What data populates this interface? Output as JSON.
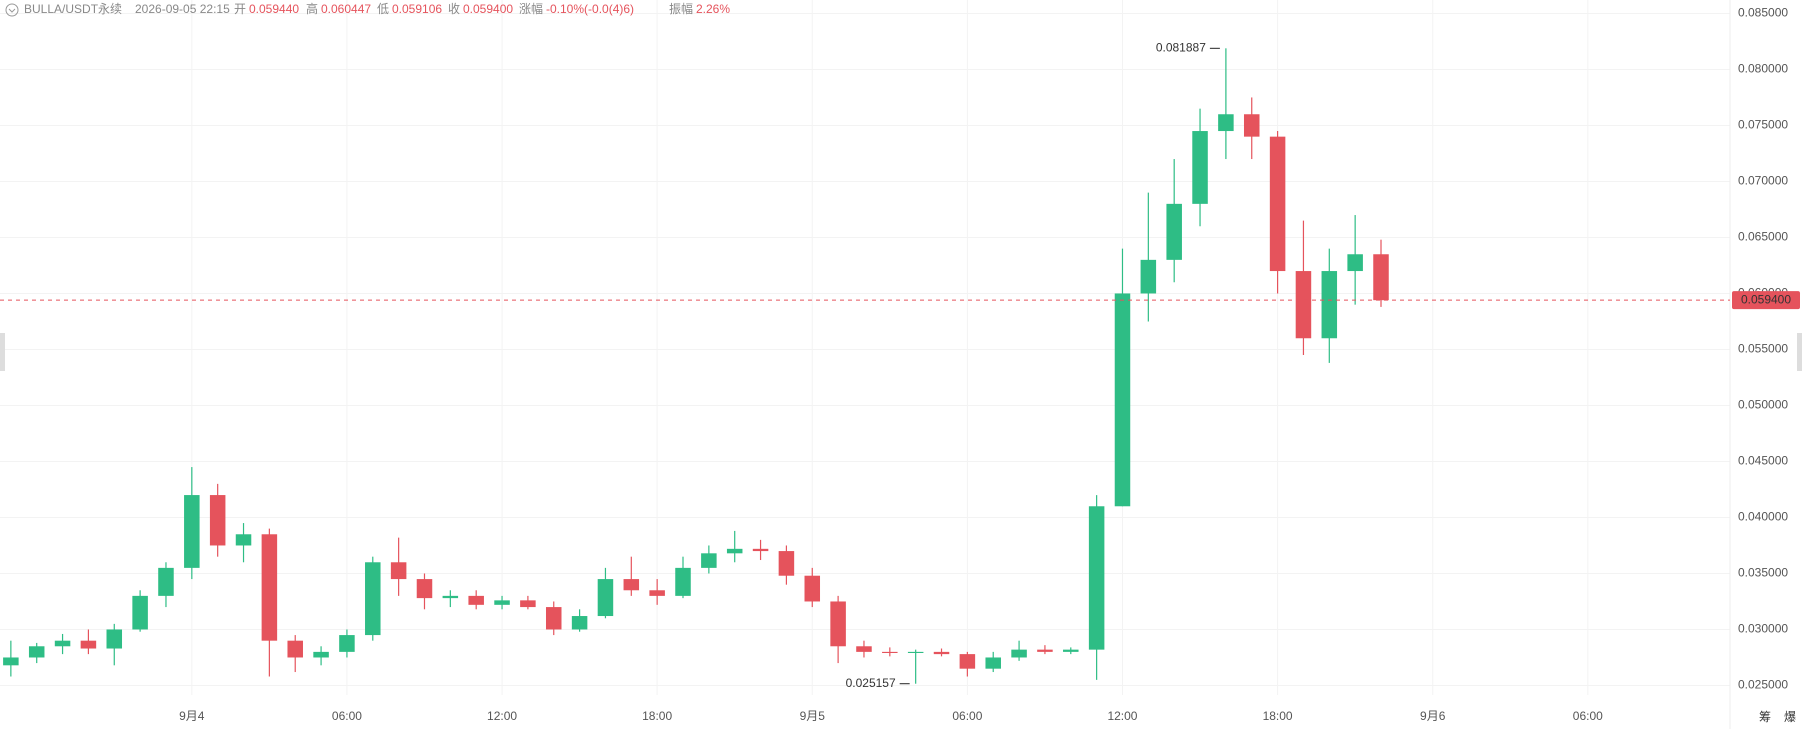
{
  "header": {
    "symbol": "BULLA/USDT永续",
    "time": "2026-09-05 22:15",
    "open_label": "开",
    "open": "0.059440",
    "high_label": "高",
    "high": "0.060447",
    "low_label": "低",
    "low": "0.059106",
    "close_label": "收",
    "close": "0.059400",
    "change_label": "涨幅",
    "change": "-0.10%(-0.0(4)6)",
    "amplitude_label": "振幅",
    "amplitude": "2.26%"
  },
  "footer": {
    "chips": "筹",
    "liquidation": "爆"
  },
  "chart_data": {
    "type": "candlestick",
    "up_color": "#2ebd85",
    "down_color": "#e5535c",
    "grid": true,
    "x": [
      -7,
      -6,
      -5,
      -4,
      -3,
      -2,
      -1,
      0,
      1,
      2,
      3,
      4,
      5,
      6,
      7,
      8,
      9,
      10,
      11,
      12,
      13,
      14,
      15,
      16,
      17,
      18,
      19,
      20,
      21,
      22,
      23,
      24,
      25,
      26,
      27,
      28,
      29,
      30,
      31,
      32,
      33,
      34,
      35,
      36,
      37,
      38,
      39,
      40,
      41,
      42,
      43,
      44,
      45,
      46
    ],
    "open": [
      0.0268,
      0.0275,
      0.0285,
      0.029,
      0.0283,
      0.03,
      0.033,
      0.0355,
      0.042,
      0.0375,
      0.0385,
      0.029,
      0.0275,
      0.028,
      0.0295,
      0.036,
      0.0345,
      0.0328,
      0.033,
      0.0322,
      0.0326,
      0.032,
      0.03,
      0.0312,
      0.0345,
      0.0335,
      0.033,
      0.0355,
      0.0368,
      0.0372,
      0.037,
      0.0348,
      0.0325,
      0.0285,
      0.028,
      0.0279,
      0.028,
      0.0278,
      0.0265,
      0.0275,
      0.0282,
      0.028,
      0.0282,
      0.041,
      0.06,
      0.063,
      0.068,
      0.0745,
      0.076,
      0.074,
      0.062,
      0.056,
      0.062,
      0.0635
    ],
    "high": [
      0.029,
      0.0288,
      0.0296,
      0.03,
      0.0305,
      0.0335,
      0.036,
      0.0445,
      0.043,
      0.0395,
      0.039,
      0.0295,
      0.0285,
      0.03,
      0.0365,
      0.0382,
      0.035,
      0.0335,
      0.0335,
      0.033,
      0.033,
      0.0325,
      0.0318,
      0.0355,
      0.0365,
      0.0345,
      0.0365,
      0.0375,
      0.0388,
      0.038,
      0.0375,
      0.0355,
      0.033,
      0.029,
      0.0284,
      0.0282,
      0.0283,
      0.028,
      0.028,
      0.029,
      0.0286,
      0.0284,
      0.042,
      0.064,
      0.069,
      0.072,
      0.0765,
      0.081887,
      0.0775,
      0.0745,
      0.0665,
      0.064,
      0.067,
      0.0648
    ],
    "low": [
      0.0258,
      0.027,
      0.0278,
      0.0278,
      0.0268,
      0.0298,
      0.032,
      0.0345,
      0.0365,
      0.036,
      0.0258,
      0.0262,
      0.0268,
      0.0275,
      0.029,
      0.033,
      0.0318,
      0.032,
      0.0318,
      0.0318,
      0.0318,
      0.0295,
      0.0298,
      0.031,
      0.033,
      0.0322,
      0.0328,
      0.035,
      0.036,
      0.0362,
      0.034,
      0.032,
      0.027,
      0.0275,
      0.0276,
      0.025157,
      0.0276,
      0.0258,
      0.0262,
      0.0272,
      0.0278,
      0.0278,
      0.0255,
      0.041,
      0.0575,
      0.061,
      0.066,
      0.072,
      0.072,
      0.06,
      0.0545,
      0.0538,
      0.059,
      0.0588
    ],
    "close": [
      0.0275,
      0.0285,
      0.029,
      0.0283,
      0.03,
      0.033,
      0.0355,
      0.042,
      0.0375,
      0.0385,
      0.029,
      0.0275,
      0.028,
      0.0295,
      0.036,
      0.0345,
      0.0328,
      0.033,
      0.0322,
      0.0326,
      0.032,
      0.03,
      0.0312,
      0.0345,
      0.0335,
      0.033,
      0.0355,
      0.0368,
      0.0372,
      0.037,
      0.0348,
      0.0325,
      0.0285,
      0.028,
      0.0279,
      0.028,
      0.0278,
      0.0265,
      0.0275,
      0.0282,
      0.028,
      0.0282,
      0.041,
      0.06,
      0.063,
      0.068,
      0.0745,
      0.076,
      0.074,
      0.062,
      0.056,
      0.062,
      0.0635,
      0.0594
    ],
    "xlim": [
      -7.42,
      59.5
    ],
    "ylim": [
      0.02415,
      0.0862
    ],
    "xticks": [
      {
        "value": 0,
        "label": "9月4"
      },
      {
        "value": 6,
        "label": "06:00"
      },
      {
        "value": 12,
        "label": "12:00"
      },
      {
        "value": 18,
        "label": "18:00"
      },
      {
        "value": 24,
        "label": "9月5"
      },
      {
        "value": 30,
        "label": "06:00"
      },
      {
        "value": 36,
        "label": "12:00"
      },
      {
        "value": 42,
        "label": "18:00"
      },
      {
        "value": 48,
        "label": "9月6"
      },
      {
        "value": 54,
        "label": "06:00"
      }
    ],
    "yticks": [
      {
        "value": 0.025,
        "label": "0.025000"
      },
      {
        "value": 0.03,
        "label": "0.030000"
      },
      {
        "value": 0.035,
        "label": "0.035000"
      },
      {
        "value": 0.04,
        "label": "0.040000"
      },
      {
        "value": 0.045,
        "label": "0.045000"
      },
      {
        "value": 0.05,
        "label": "0.050000"
      },
      {
        "value": 0.055,
        "label": "0.055000"
      },
      {
        "value": 0.06,
        "label": "0.060000"
      },
      {
        "value": 0.065,
        "label": "0.065000"
      },
      {
        "value": 0.07,
        "label": "0.070000"
      },
      {
        "value": 0.075,
        "label": "0.075000"
      },
      {
        "value": 0.08,
        "label": "0.080000"
      },
      {
        "value": 0.085,
        "label": "0.085000"
      }
    ],
    "max_label": {
      "value": 0.081887,
      "label": "0.081887"
    },
    "min_label": {
      "value": 0.025157,
      "label": "0.025157"
    },
    "last_price": {
      "value": 0.0594,
      "label": "0.059400",
      "color": "#e5535c"
    }
  }
}
